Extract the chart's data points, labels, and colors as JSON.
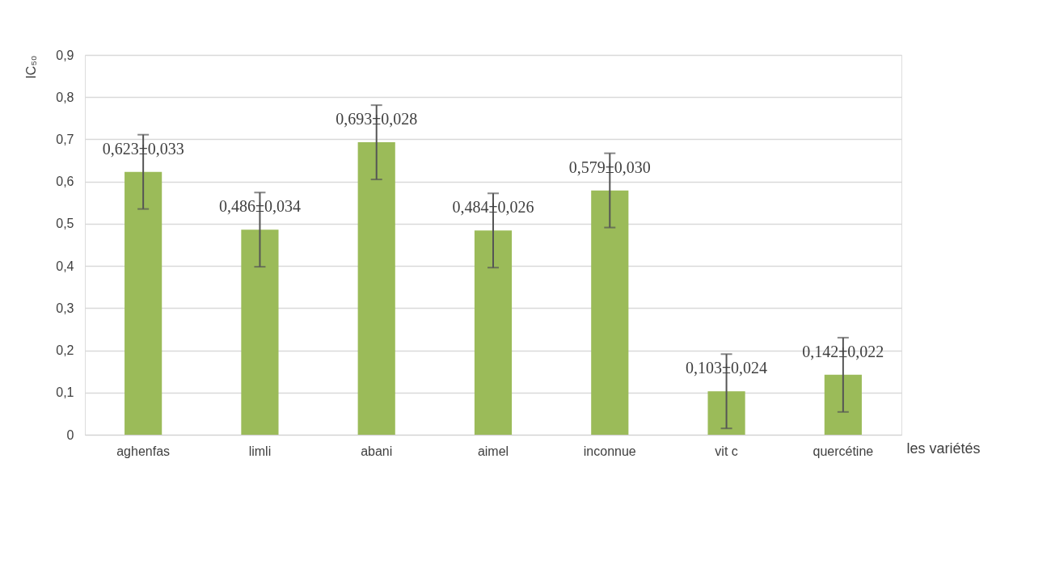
{
  "chart_data": {
    "type": "bar",
    "xlabel": "les variétés",
    "ylabel": "IC₅₀",
    "categories": [
      "aghenfas",
      "limli",
      "abani",
      "aimel",
      "inconnue",
      "vit c",
      "quercétine"
    ],
    "values": [
      0.623,
      0.486,
      0.693,
      0.484,
      0.579,
      0.103,
      0.142
    ],
    "errors": [
      0.088,
      0.088,
      0.088,
      0.088,
      0.088,
      0.088,
      0.088
    ],
    "value_labels": [
      "0,623±0,033",
      "0,486±0,034",
      "0,693±0,028",
      "0,484±0,026",
      "0,579±0,030",
      "0,103±0,024",
      "0,142±0,022"
    ],
    "color": "#9bbb59",
    "ylim": [
      0,
      0.9
    ],
    "yticks": [
      0,
      {
        "value": 0.1,
        "label": "0,1"
      },
      {
        "value": 0.2,
        "label": "0,2"
      },
      {
        "value": 0.3,
        "label": "0,3"
      },
      {
        "value": 0.4,
        "label": "0,4"
      },
      {
        "value": 0.5,
        "label": "0,5"
      },
      {
        "value": 0.6,
        "label": "0,6"
      },
      {
        "value": 0.7,
        "label": "0,7"
      },
      {
        "value": 0.8,
        "label": "0,8"
      },
      {
        "value": 0.9,
        "label": "0,9"
      }
    ],
    "grid": "y",
    "legend": false
  }
}
